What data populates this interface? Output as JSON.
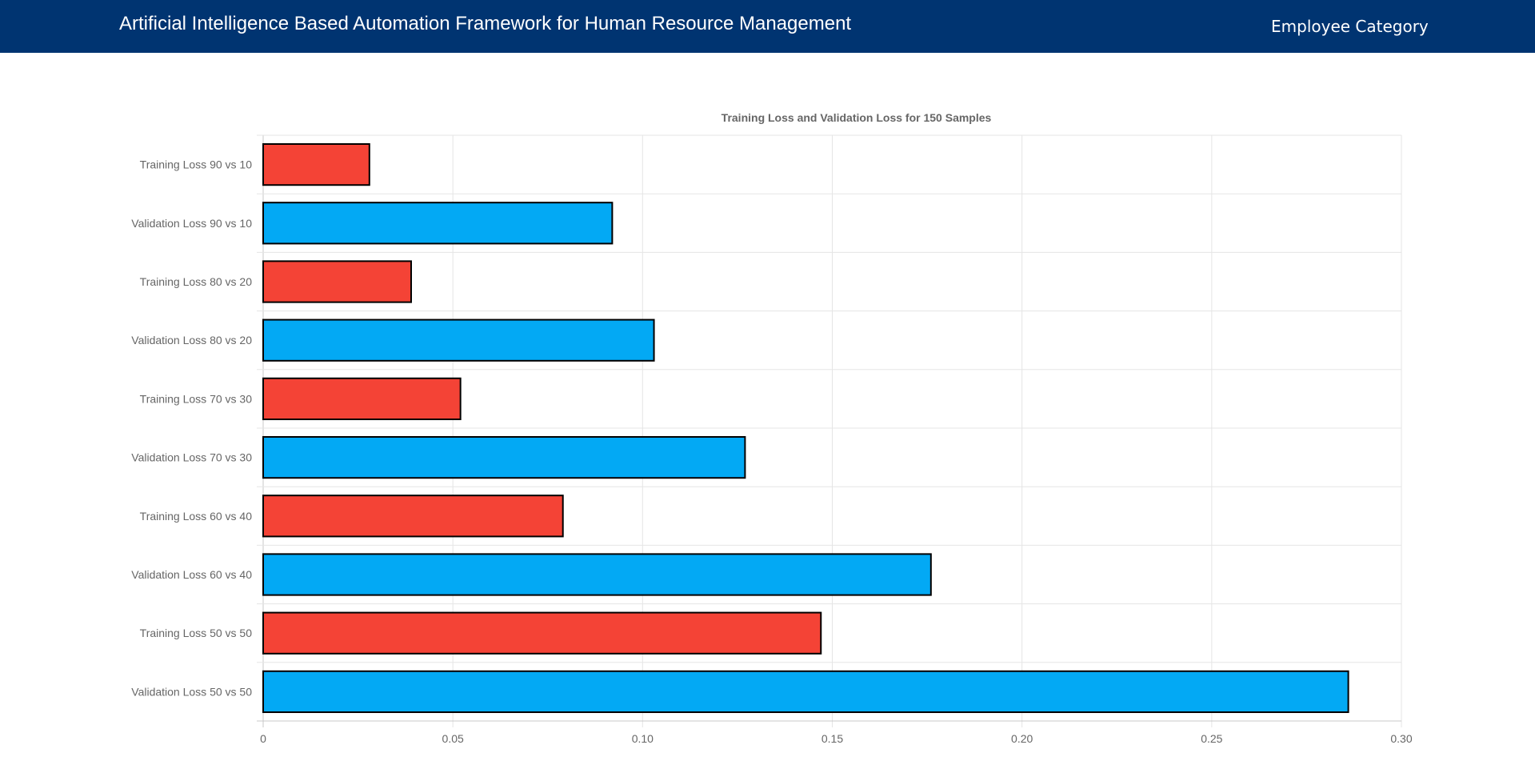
{
  "header": {
    "title": "Artificial Intelligence Based Automation Framework for Human Resource Management",
    "nav_link": "Employee Category"
  },
  "colors": {
    "header_bg": "#003471",
    "training": "#f44336",
    "validation": "#03a9f4",
    "bar_border": "#000000"
  },
  "chart_data": {
    "type": "bar",
    "orientation": "horizontal",
    "title": "Training Loss and Validation Loss for 150 Samples",
    "categories": [
      "Training Loss 90 vs 10",
      "Validation Loss 90 vs 10",
      "Training Loss 80 vs 20",
      "Validation Loss 80 vs 20",
      "Training Loss 70 vs 30",
      "Validation Loss 70 vs 30",
      "Training Loss 60 vs 40",
      "Validation Loss 60 vs 40",
      "Training Loss 50 vs 50",
      "Validation Loss 50 vs 50"
    ],
    "values": [
      0.028,
      0.092,
      0.039,
      0.103,
      0.052,
      0.127,
      0.079,
      0.176,
      0.147,
      0.286
    ],
    "bar_colors": [
      "#f44336",
      "#03a9f4",
      "#f44336",
      "#03a9f4",
      "#f44336",
      "#03a9f4",
      "#f44336",
      "#03a9f4",
      "#f44336",
      "#03a9f4"
    ],
    "xlim": [
      0,
      0.3
    ],
    "x_ticks": [
      "0",
      "0.05",
      "0.10",
      "0.15",
      "0.20",
      "0.25",
      "0.30"
    ],
    "grid": true,
    "legend": "none"
  }
}
